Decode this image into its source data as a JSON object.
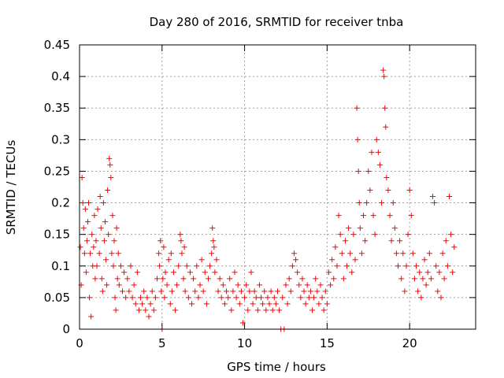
{
  "chart_data": {
    "type": "scatter",
    "title": "Day 280 of 2016, SRMTID for receiver tnba",
    "xlabel": "GPS time / hours",
    "ylabel": "SRMTID / TECUs",
    "xlim": [
      0,
      24
    ],
    "ylim": [
      0,
      0.45
    ],
    "x_ticks": [
      0,
      5,
      10,
      15,
      20
    ],
    "x_tick_labels": [
      "0",
      "5",
      "10",
      "15",
      "20"
    ],
    "y_ticks": [
      0,
      0.05,
      0.1,
      0.15,
      0.2,
      0.25,
      0.3,
      0.35,
      0.4,
      0.45
    ],
    "y_tick_labels": [
      "0",
      "0.05",
      "0.1",
      "0.15",
      "0.2",
      "0.25",
      "0.3",
      "0.35",
      "0.4",
      "0.45"
    ],
    "grid": true,
    "legend": "none",
    "marker": "+",
    "marker_color": "#ff0000",
    "series": [
      {
        "name": "SRMTID",
        "points": [
          [
            0.05,
            0.13
          ],
          [
            0.1,
            0.07
          ],
          [
            0.15,
            0.24
          ],
          [
            0.2,
            0.2
          ],
          [
            0.25,
            0.16
          ],
          [
            0.3,
            0.12
          ],
          [
            0.35,
            0.19
          ],
          [
            0.4,
            0.09
          ],
          [
            0.45,
            0.14
          ],
          [
            0.5,
            0.17
          ],
          [
            0.55,
            0.2
          ],
          [
            0.6,
            0.05
          ],
          [
            0.65,
            0.12
          ],
          [
            0.7,
            0.02
          ],
          [
            0.75,
            0.15
          ],
          [
            0.8,
            0.1
          ],
          [
            0.85,
            0.13
          ],
          [
            0.9,
            0.18
          ],
          [
            0.95,
            0.08
          ],
          [
            1.0,
            0.14
          ],
          [
            1.05,
            0.1
          ],
          [
            1.1,
            0.19
          ],
          [
            1.2,
            0.12
          ],
          [
            1.25,
            0.21
          ],
          [
            1.3,
            0.16
          ],
          [
            1.35,
            0.08
          ],
          [
            1.4,
            0.06
          ],
          [
            1.45,
            0.2
          ],
          [
            1.5,
            0.14
          ],
          [
            1.55,
            0.17
          ],
          [
            1.6,
            0.11
          ],
          [
            1.65,
            0.07
          ],
          [
            1.7,
            0.22
          ],
          [
            1.75,
            0.15
          ],
          [
            1.8,
            0.27
          ],
          [
            1.85,
            0.26
          ],
          [
            1.9,
            0.24
          ],
          [
            1.95,
            0.12
          ],
          [
            2.0,
            0.18
          ],
          [
            2.05,
            0.1
          ],
          [
            2.1,
            0.14
          ],
          [
            2.15,
            0.05
          ],
          [
            2.2,
            0.03
          ],
          [
            2.25,
            0.16
          ],
          [
            2.3,
            0.08
          ],
          [
            2.35,
            0.12
          ],
          [
            2.4,
            0.07
          ],
          [
            2.5,
            0.1
          ],
          [
            2.6,
            0.06
          ],
          [
            2.7,
            0.09
          ],
          [
            2.8,
            0.05
          ],
          [
            2.9,
            0.08
          ],
          [
            3.0,
            0.06
          ],
          [
            3.1,
            0.1
          ],
          [
            3.2,
            0.05
          ],
          [
            3.3,
            0.07
          ],
          [
            3.4,
            0.04
          ],
          [
            3.5,
            0.09
          ],
          [
            3.6,
            0.03
          ],
          [
            3.7,
            0.05
          ],
          [
            3.8,
            0.04
          ],
          [
            3.9,
            0.06
          ],
          [
            4.0,
            0.03
          ],
          [
            4.1,
            0.05
          ],
          [
            4.2,
            0.02
          ],
          [
            4.3,
            0.04
          ],
          [
            4.4,
            0.06
          ],
          [
            4.5,
            0.03
          ],
          [
            4.6,
            0.05
          ],
          [
            4.7,
            0.08
          ],
          [
            4.8,
            0.12
          ],
          [
            4.85,
            0.1
          ],
          [
            4.9,
            0.14
          ],
          [
            4.95,
            0.06
          ],
          [
            5.0,
            0.0
          ],
          [
            5.05,
            0.08
          ],
          [
            5.1,
            0.13
          ],
          [
            5.15,
            0.05
          ],
          [
            5.2,
            0.09
          ],
          [
            5.3,
            0.07
          ],
          [
            5.4,
            0.11
          ],
          [
            5.5,
            0.04
          ],
          [
            5.55,
            0.12
          ],
          [
            5.6,
            0.06
          ],
          [
            5.7,
            0.09
          ],
          [
            5.8,
            0.03
          ],
          [
            5.9,
            0.07
          ],
          [
            6.0,
            0.1
          ],
          [
            6.1,
            0.15
          ],
          [
            6.15,
            0.14
          ],
          [
            6.2,
            0.12
          ],
          [
            6.3,
            0.08
          ],
          [
            6.35,
            0.13
          ],
          [
            6.4,
            0.06
          ],
          [
            6.5,
            0.1
          ],
          [
            6.6,
            0.05
          ],
          [
            6.7,
            0.09
          ],
          [
            6.8,
            0.04
          ],
          [
            6.9,
            0.08
          ],
          [
            7.0,
            0.06
          ],
          [
            7.1,
            0.1
          ],
          [
            7.2,
            0.05
          ],
          [
            7.3,
            0.07
          ],
          [
            7.4,
            0.11
          ],
          [
            7.5,
            0.06
          ],
          [
            7.6,
            0.09
          ],
          [
            7.7,
            0.04
          ],
          [
            7.8,
            0.08
          ],
          [
            7.9,
            0.1
          ],
          [
            8.0,
            0.12
          ],
          [
            8.05,
            0.16
          ],
          [
            8.1,
            0.14
          ],
          [
            8.15,
            0.13
          ],
          [
            8.2,
            0.09
          ],
          [
            8.3,
            0.11
          ],
          [
            8.4,
            0.06
          ],
          [
            8.5,
            0.08
          ],
          [
            8.6,
            0.05
          ],
          [
            8.7,
            0.07
          ],
          [
            8.8,
            0.04
          ],
          [
            8.9,
            0.06
          ],
          [
            9.0,
            0.05
          ],
          [
            9.1,
            0.08
          ],
          [
            9.2,
            0.03
          ],
          [
            9.3,
            0.06
          ],
          [
            9.4,
            0.09
          ],
          [
            9.5,
            0.05
          ],
          [
            9.6,
            0.07
          ],
          [
            9.7,
            0.04
          ],
          [
            9.8,
            0.06
          ],
          [
            9.9,
            0.01
          ],
          [
            10.0,
            0.05
          ],
          [
            10.1,
            0.07
          ],
          [
            10.2,
            0.03
          ],
          [
            10.3,
            0.06
          ],
          [
            10.4,
            0.09
          ],
          [
            10.5,
            0.04
          ],
          [
            10.6,
            0.06
          ],
          [
            10.7,
            0.05
          ],
          [
            10.8,
            0.03
          ],
          [
            10.9,
            0.07
          ],
          [
            11.0,
            0.05
          ],
          [
            11.1,
            0.04
          ],
          [
            11.2,
            0.06
          ],
          [
            11.3,
            0.03
          ],
          [
            11.4,
            0.05
          ],
          [
            11.5,
            0.04
          ],
          [
            11.6,
            0.06
          ],
          [
            11.7,
            0.03
          ],
          [
            11.8,
            0.05
          ],
          [
            11.9,
            0.04
          ],
          [
            12.0,
            0.06
          ],
          [
            12.1,
            0.03
          ],
          [
            12.2,
            0.0
          ],
          [
            12.3,
            0.05
          ],
          [
            12.4,
            0.0
          ],
          [
            12.5,
            0.07
          ],
          [
            12.6,
            0.04
          ],
          [
            12.7,
            0.08
          ],
          [
            12.8,
            0.06
          ],
          [
            12.9,
            0.1
          ],
          [
            13.0,
            0.12
          ],
          [
            13.1,
            0.11
          ],
          [
            13.2,
            0.09
          ],
          [
            13.3,
            0.07
          ],
          [
            13.4,
            0.05
          ],
          [
            13.5,
            0.08
          ],
          [
            13.6,
            0.06
          ],
          [
            13.7,
            0.04
          ],
          [
            13.8,
            0.07
          ],
          [
            13.9,
            0.05
          ],
          [
            14.0,
            0.06
          ],
          [
            14.1,
            0.03
          ],
          [
            14.2,
            0.05
          ],
          [
            14.3,
            0.08
          ],
          [
            14.4,
            0.06
          ],
          [
            14.5,
            0.04
          ],
          [
            14.6,
            0.07
          ],
          [
            14.7,
            0.05
          ],
          [
            14.8,
            0.03
          ],
          [
            14.9,
            0.06
          ],
          [
            15.0,
            0.04
          ],
          [
            15.1,
            0.09
          ],
          [
            15.2,
            0.07
          ],
          [
            15.3,
            0.11
          ],
          [
            15.4,
            0.08
          ],
          [
            15.5,
            0.13
          ],
          [
            15.6,
            0.1
          ],
          [
            15.7,
            0.18
          ],
          [
            15.8,
            0.15
          ],
          [
            15.9,
            0.12
          ],
          [
            16.0,
            0.08
          ],
          [
            16.1,
            0.14
          ],
          [
            16.2,
            0.1
          ],
          [
            16.3,
            0.16
          ],
          [
            16.4,
            0.12
          ],
          [
            16.5,
            0.09
          ],
          [
            16.6,
            0.15
          ],
          [
            16.7,
            0.11
          ],
          [
            16.8,
            0.35
          ],
          [
            16.85,
            0.3
          ],
          [
            16.9,
            0.25
          ],
          [
            16.95,
            0.2
          ],
          [
            17.0,
            0.16
          ],
          [
            17.1,
            0.12
          ],
          [
            17.2,
            0.18
          ],
          [
            17.3,
            0.14
          ],
          [
            17.4,
            0.2
          ],
          [
            17.5,
            0.25
          ],
          [
            17.6,
            0.22
          ],
          [
            17.7,
            0.28
          ],
          [
            17.8,
            0.18
          ],
          [
            17.9,
            0.15
          ],
          [
            18.0,
            0.3
          ],
          [
            18.1,
            0.28
          ],
          [
            18.2,
            0.26
          ],
          [
            18.3,
            0.2
          ],
          [
            18.4,
            0.41
          ],
          [
            18.45,
            0.4
          ],
          [
            18.5,
            0.35
          ],
          [
            18.55,
            0.32
          ],
          [
            18.6,
            0.24
          ],
          [
            18.7,
            0.22
          ],
          [
            18.8,
            0.18
          ],
          [
            18.9,
            0.14
          ],
          [
            19.0,
            0.2
          ],
          [
            19.1,
            0.16
          ],
          [
            19.2,
            0.12
          ],
          [
            19.3,
            0.1
          ],
          [
            19.4,
            0.14
          ],
          [
            19.5,
            0.08
          ],
          [
            19.6,
            0.12
          ],
          [
            19.7,
            0.06
          ],
          [
            19.8,
            0.1
          ],
          [
            19.9,
            0.15
          ],
          [
            20.0,
            0.22
          ],
          [
            20.1,
            0.18
          ],
          [
            20.2,
            0.12
          ],
          [
            20.3,
            0.08
          ],
          [
            20.4,
            0.1
          ],
          [
            20.5,
            0.06
          ],
          [
            20.6,
            0.09
          ],
          [
            20.7,
            0.05
          ],
          [
            20.8,
            0.08
          ],
          [
            20.9,
            0.11
          ],
          [
            21.0,
            0.07
          ],
          [
            21.1,
            0.09
          ],
          [
            21.2,
            0.12
          ],
          [
            21.3,
            0.08
          ],
          [
            21.4,
            0.21
          ],
          [
            21.5,
            0.2
          ],
          [
            21.6,
            0.1
          ],
          [
            21.7,
            0.06
          ],
          [
            21.8,
            0.09
          ],
          [
            21.9,
            0.05
          ],
          [
            22.0,
            0.12
          ],
          [
            22.1,
            0.08
          ],
          [
            22.2,
            0.14
          ],
          [
            22.3,
            0.1
          ],
          [
            22.4,
            0.21
          ],
          [
            22.5,
            0.15
          ],
          [
            22.6,
            0.09
          ],
          [
            22.7,
            0.13
          ]
        ]
      }
    ]
  }
}
